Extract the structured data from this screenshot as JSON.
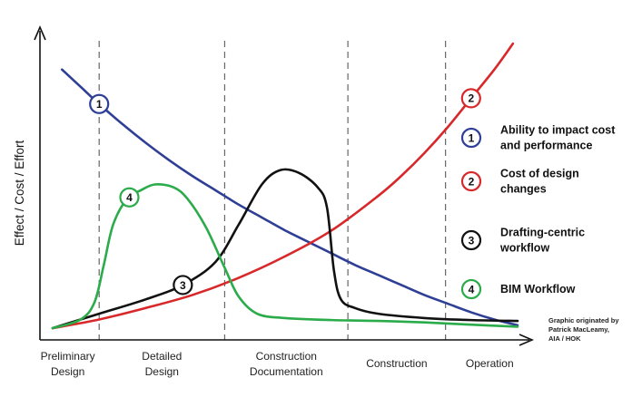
{
  "chart_data": {
    "type": "line",
    "title": "",
    "ylabel": "Effect / Cost / Effort",
    "xlabel": "",
    "x_domain": [
      0,
      10
    ],
    "y_domain": [
      0,
      10
    ],
    "grid": false,
    "legend_position": "right",
    "phases": [
      {
        "lines": [
          "Preliminary",
          "Design"
        ]
      },
      {
        "lines": [
          "Detailed",
          "Design"
        ]
      },
      {
        "lines": [
          "Construction",
          "Documentation"
        ]
      },
      {
        "lines": [
          "Construction"
        ]
      },
      {
        "lines": [
          "Operation"
        ]
      }
    ],
    "phase_boundaries": [
      1.0,
      3.7,
      6.35,
      8.45
    ],
    "series": [
      {
        "name": "Ability to impact cost and performance",
        "marker": "1",
        "color": "#2e3f95",
        "marker_x": 1.0,
        "legend_lines": [
          "Ability to impact cost",
          "and performance"
        ],
        "points": [
          [
            0.2,
            9.0
          ],
          [
            0.6,
            8.4
          ],
          [
            1.0,
            7.8
          ],
          [
            1.5,
            7.1
          ],
          [
            2.0,
            6.45
          ],
          [
            2.5,
            5.85
          ],
          [
            3.0,
            5.3
          ],
          [
            3.5,
            4.8
          ],
          [
            4.0,
            4.3
          ],
          [
            4.5,
            3.85
          ],
          [
            5.0,
            3.4
          ],
          [
            5.5,
            3.0
          ],
          [
            6.0,
            2.6
          ],
          [
            6.5,
            2.2
          ],
          [
            7.0,
            1.85
          ],
          [
            7.5,
            1.5
          ],
          [
            8.0,
            1.15
          ],
          [
            8.5,
            0.85
          ],
          [
            9.0,
            0.55
          ],
          [
            9.5,
            0.3
          ],
          [
            10.0,
            0.1
          ]
        ]
      },
      {
        "name": "Cost of design changes",
        "marker": "2",
        "color": "#d8282a",
        "marker_x": 9.0,
        "legend_lines": [
          "Cost of design",
          "changes"
        ],
        "points": [
          [
            0.0,
            0.0
          ],
          [
            1.0,
            0.3
          ],
          [
            2.0,
            0.7
          ],
          [
            3.0,
            1.15
          ],
          [
            4.0,
            1.75
          ],
          [
            5.0,
            2.5
          ],
          [
            6.0,
            3.4
          ],
          [
            7.0,
            4.6
          ],
          [
            7.5,
            5.3
          ],
          [
            8.0,
            6.1
          ],
          [
            8.5,
            7.0
          ],
          [
            9.0,
            8.0
          ],
          [
            9.5,
            9.0
          ],
          [
            9.9,
            9.9
          ]
        ]
      },
      {
        "name": "Drafting-centric workflow",
        "marker": "3",
        "color": "#111111",
        "marker_x": 2.8,
        "legend_lines": [
          "Drafting-centric",
          "workflow"
        ],
        "points": [
          [
            0.0,
            0.0
          ],
          [
            1.0,
            0.5
          ],
          [
            2.0,
            1.0
          ],
          [
            2.8,
            1.5
          ],
          [
            3.5,
            2.3
          ],
          [
            4.0,
            3.6
          ],
          [
            4.5,
            5.0
          ],
          [
            4.9,
            5.5
          ],
          [
            5.3,
            5.4
          ],
          [
            5.7,
            4.9
          ],
          [
            5.9,
            4.2
          ],
          [
            6.05,
            2.0
          ],
          [
            6.2,
            1.0
          ],
          [
            6.5,
            0.7
          ],
          [
            7.0,
            0.5
          ],
          [
            8.0,
            0.35
          ],
          [
            9.0,
            0.28
          ],
          [
            10.0,
            0.25
          ]
        ]
      },
      {
        "name": "BIM Workflow",
        "marker": "4",
        "color": "#2bab4a",
        "marker_x": 1.65,
        "legend_lines": [
          "BIM Workflow"
        ],
        "points": [
          [
            0.0,
            0.0
          ],
          [
            0.6,
            0.3
          ],
          [
            0.9,
            0.9
          ],
          [
            1.1,
            2.2
          ],
          [
            1.3,
            3.6
          ],
          [
            1.6,
            4.5
          ],
          [
            1.9,
            4.8
          ],
          [
            2.2,
            5.0
          ],
          [
            2.6,
            4.9
          ],
          [
            2.9,
            4.5
          ],
          [
            3.3,
            3.5
          ],
          [
            3.7,
            2.1
          ],
          [
            4.0,
            1.1
          ],
          [
            4.4,
            0.5
          ],
          [
            5.0,
            0.35
          ],
          [
            6.0,
            0.28
          ],
          [
            7.0,
            0.25
          ],
          [
            8.0,
            0.2
          ],
          [
            9.0,
            0.12
          ],
          [
            10.0,
            0.05
          ]
        ]
      }
    ],
    "credit_lines": [
      "Graphic originated by",
      "Patrick MacLeamy,",
      "AIA / HOK"
    ]
  }
}
